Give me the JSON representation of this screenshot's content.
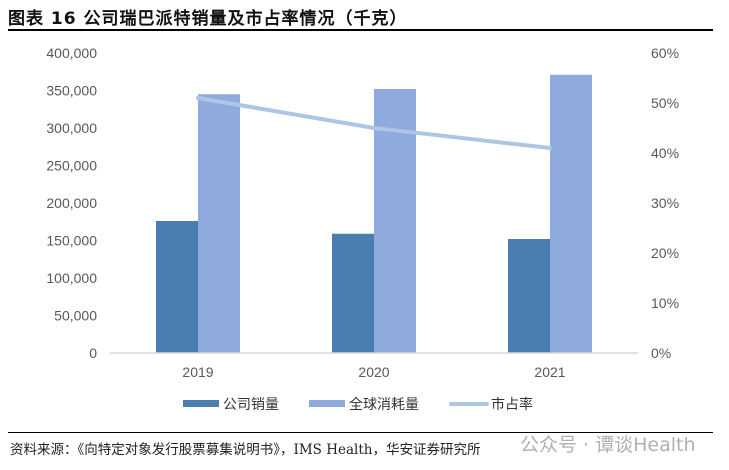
{
  "figure": {
    "title": "图表 16 公司瑞巴派特销量及市占率情况（千克）",
    "source": "资料来源：《向特定对象发行股票募集说明书》，IMS Health，华安证券研究所",
    "watermark": "公众号 · 谭谈Health"
  },
  "chart_data": {
    "type": "bar",
    "title": "图表 16 公司瑞巴派特销量及市占率情况（千克）",
    "categories": [
      "2019",
      "2020",
      "2021"
    ],
    "series": [
      {
        "name": "公司销量",
        "type": "bar",
        "axis": "left",
        "color": "#4a7eae",
        "values": [
          176000,
          159000,
          152000
        ]
      },
      {
        "name": "全球消耗量",
        "type": "bar",
        "axis": "left",
        "color": "#8faadc",
        "values": [
          345000,
          352000,
          371000
        ]
      },
      {
        "name": "市占率",
        "type": "line",
        "axis": "right",
        "color": "#aec5e6",
        "values": [
          0.51,
          0.45,
          0.41
        ]
      }
    ],
    "left_axis": {
      "ylim": [
        0,
        400000
      ],
      "ticks": [
        "0",
        "50,000",
        "100,000",
        "150,000",
        "200,000",
        "250,000",
        "300,000",
        "350,000",
        "400,000"
      ]
    },
    "right_axis": {
      "ylim": [
        0,
        0.6
      ],
      "ticks": [
        "0%",
        "10%",
        "20%",
        "30%",
        "40%",
        "50%",
        "60%"
      ]
    },
    "grid": false,
    "legend_position": "bottom",
    "legend": [
      "公司销量",
      "全球消耗量",
      "市占率"
    ]
  }
}
